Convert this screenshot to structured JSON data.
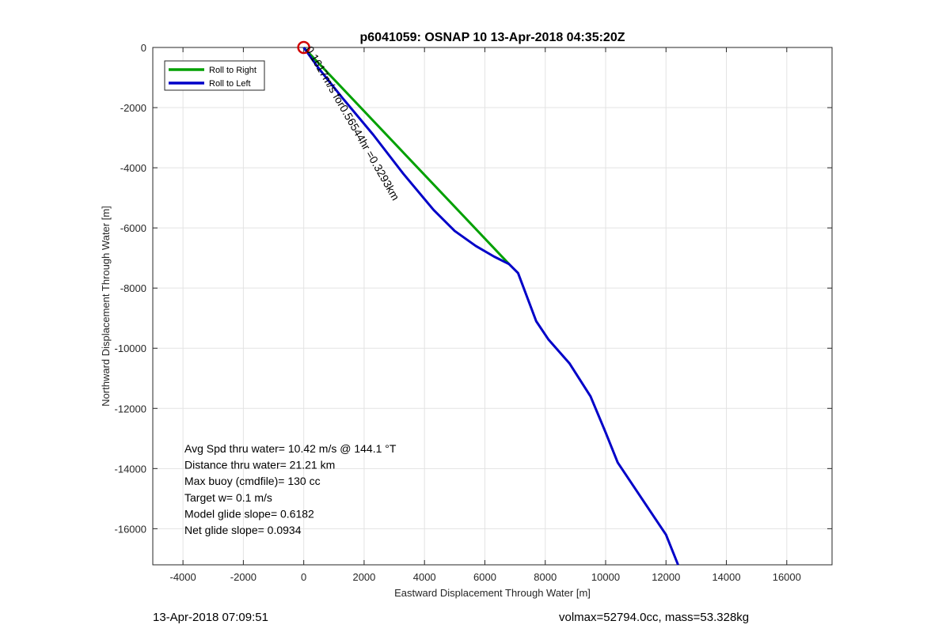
{
  "chart_data": {
    "type": "line",
    "title": "p6041059: OSNAP 10 13-Apr-2018 04:35:20Z",
    "xlabel": "Eastward Displacement Through Water [m]",
    "ylabel": "Northward Displacement Through Water [m]",
    "xlim": [
      -5000,
      17500
    ],
    "ylim": [
      -17200,
      0
    ],
    "xticks": [
      -4000,
      -2000,
      0,
      2000,
      4000,
      6000,
      8000,
      10000,
      12000,
      14000,
      16000
    ],
    "yticks": [
      0,
      -2000,
      -4000,
      -6000,
      -8000,
      -10000,
      -12000,
      -14000,
      -16000
    ],
    "grid": true,
    "legend_position": "top-left",
    "series": [
      {
        "name": "Roll to Right",
        "color": "#00a000",
        "x": [
          0,
          6800
        ],
        "y": [
          0,
          -7200
        ]
      },
      {
        "name": "Roll to Left",
        "color": "#0000c8",
        "x": [
          0,
          500,
          1300,
          2300,
          3300,
          4300,
          5000,
          5700,
          6300,
          6800,
          7100,
          7400,
          7700,
          8100,
          8800,
          9500,
          10000,
          10400,
          11000,
          11600,
          12000,
          12400
        ],
        "y": [
          0,
          -700,
          -1700,
          -2900,
          -4200,
          -5400,
          -6100,
          -6600,
          -6950,
          -7200,
          -7500,
          -8300,
          -9100,
          -9700,
          -10500,
          -11600,
          -12800,
          -13800,
          -14700,
          -15600,
          -16200,
          -17200
        ]
      }
    ],
    "start_marker": {
      "x": 0,
      "y": 0,
      "color": "#d00000"
    },
    "rotated_annotation": "0.1617m/s for0.56544hr =0.3293km",
    "stats": [
      "Avg Spd thru water= 10.42 m/s @ 144.1 °T",
      "Distance thru water= 21.21 km",
      "Max buoy (cmdfile)= 130 cc",
      "Target w= 0.1 m/s",
      "Model glide slope= 0.6182",
      "Net glide slope= 0.0934"
    ]
  },
  "footer": {
    "left": "13-Apr-2018 07:09:51",
    "right": "volmax=52794.0cc, mass=53.328kg"
  }
}
